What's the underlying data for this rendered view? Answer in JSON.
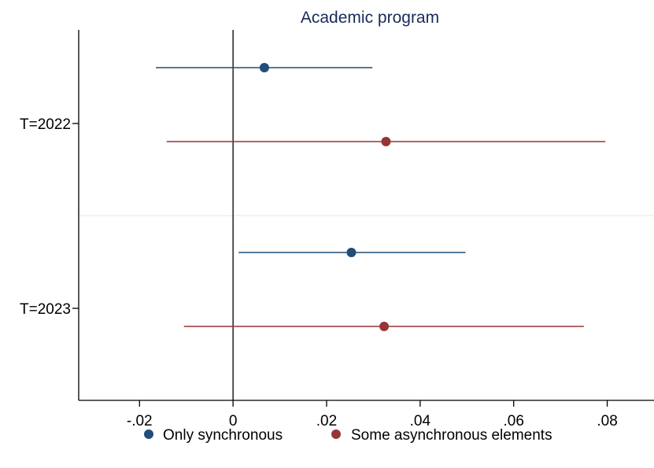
{
  "chart_data": {
    "type": "coefficient_plot",
    "title": "Academic program",
    "title_color": "#1a2b5a",
    "xlabel": "",
    "ylabel": "",
    "xlim": [
      -0.033,
      0.09
    ],
    "x_ticks": [
      -0.02,
      0,
      0.02,
      0.04,
      0.06,
      0.08
    ],
    "x_tick_labels": [
      "-.02",
      "0",
      ".02",
      ".04",
      ".06",
      ".08"
    ],
    "categories": [
      "T=2022",
      "T=2023"
    ],
    "reference_line_x": 0,
    "grid": false,
    "legend_position": "bottom",
    "series": [
      {
        "name": "Only synchronous",
        "color": "#1f4e79",
        "points": [
          {
            "category": "T=2022",
            "estimate": 0.0067,
            "ci_low": -0.0165,
            "ci_high": 0.0298
          },
          {
            "category": "T=2023",
            "estimate": 0.0253,
            "ci_low": 0.0012,
            "ci_high": 0.0497
          }
        ]
      },
      {
        "name": "Some asynchronous elements",
        "color": "#963538",
        "points": [
          {
            "category": "T=2022",
            "estimate": 0.0327,
            "ci_low": -0.0142,
            "ci_high": 0.0796
          },
          {
            "category": "T=2023",
            "estimate": 0.0323,
            "ci_low": -0.0105,
            "ci_high": 0.075
          }
        ]
      }
    ]
  }
}
